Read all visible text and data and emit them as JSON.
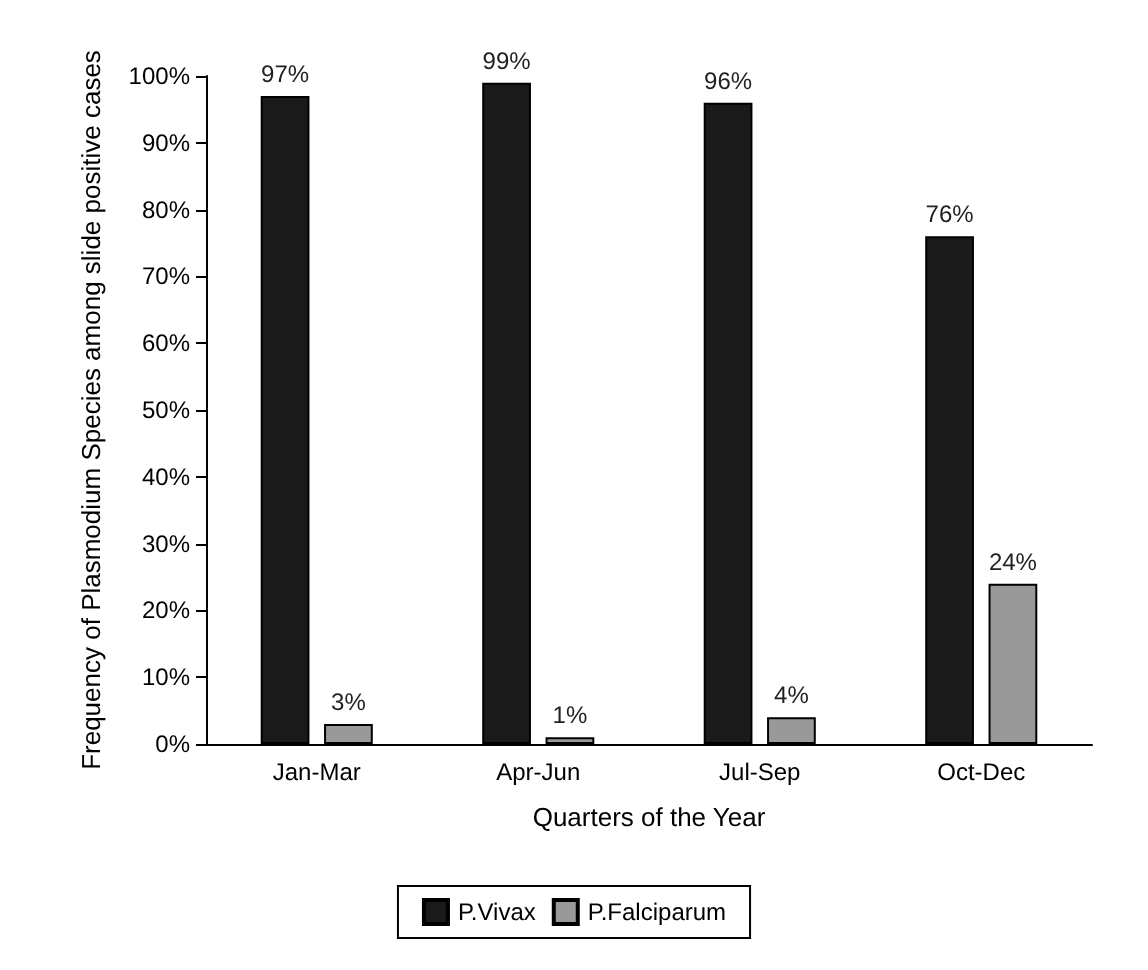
{
  "chart_data": {
    "type": "bar",
    "xlabel": "Quarters of the Year",
    "ylabel": "Frequency of Plasmodium Species among slide positive cases",
    "categories": [
      "Jan-Mar",
      "Apr-Jun",
      "Jul-Sep",
      "Oct-Dec"
    ],
    "series": [
      {
        "name": "P.Vivax",
        "color": "#1a1a1a",
        "values": [
          97,
          99,
          96,
          76
        ],
        "value_labels": [
          "97%",
          "99%",
          "96%",
          "76%"
        ]
      },
      {
        "name": "P.Falciparum",
        "color": "#999999",
        "values": [
          3,
          1,
          4,
          24
        ],
        "value_labels": [
          "3%",
          "1%",
          "4%",
          "24%"
        ]
      }
    ],
    "ylim": [
      0,
      100
    ],
    "yticks": [
      {
        "value": 0,
        "label": "0%"
      },
      {
        "value": 10,
        "label": "10%"
      },
      {
        "value": 20,
        "label": "20%"
      },
      {
        "value": 30,
        "label": "30%"
      },
      {
        "value": 40,
        "label": "40%"
      },
      {
        "value": 50,
        "label": "50%"
      },
      {
        "value": 60,
        "label": "60%"
      },
      {
        "value": 70,
        "label": "70%"
      },
      {
        "value": 80,
        "label": "80%"
      },
      {
        "value": 90,
        "label": "90%"
      },
      {
        "value": 100,
        "label": "100%"
      }
    ],
    "grid": false,
    "legend": "bottom"
  }
}
